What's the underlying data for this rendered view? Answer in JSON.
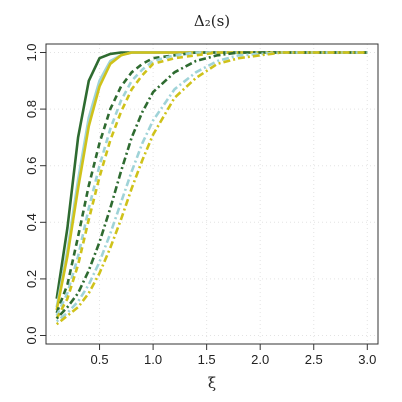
{
  "chart_data": {
    "type": "line",
    "title": "Δ₂(s)",
    "xlabel": "ξ",
    "ylabel": "",
    "xlim": [
      0.0,
      3.1
    ],
    "ylim": [
      -0.03,
      1.03
    ],
    "xticks": [
      "0.5",
      "1.0",
      "1.5",
      "2.0",
      "2.5",
      "3.0"
    ],
    "yticks": [
      "0.0",
      "0.2",
      "0.4",
      "0.6",
      "0.8",
      "1.0"
    ],
    "grid": true,
    "x": [
      0.1,
      0.2,
      0.3,
      0.4,
      0.5,
      0.6,
      0.7,
      0.8,
      0.9,
      1.0,
      1.2,
      1.4,
      1.6,
      1.8,
      2.0,
      2.2,
      2.4,
      2.6,
      2.8,
      3.0
    ],
    "series": [
      {
        "style": "solid",
        "color": "#2e6b30",
        "values": [
          0.13,
          0.38,
          0.7,
          0.9,
          0.98,
          0.995,
          1.0,
          1.0,
          1.0,
          1.0,
          1.0,
          1.0,
          1.0,
          1.0,
          1.0,
          1.0,
          1.0,
          1.0,
          1.0,
          1.0
        ]
      },
      {
        "style": "solid",
        "color": "#9fd3d8",
        "values": [
          0.1,
          0.3,
          0.55,
          0.77,
          0.9,
          0.97,
          0.99,
          1.0,
          1.0,
          1.0,
          1.0,
          1.0,
          1.0,
          1.0,
          1.0,
          1.0,
          1.0,
          1.0,
          1.0,
          1.0
        ]
      },
      {
        "style": "solid",
        "color": "#cfc21a",
        "values": [
          0.09,
          0.28,
          0.52,
          0.74,
          0.88,
          0.96,
          0.99,
          1.0,
          1.0,
          1.0,
          1.0,
          1.0,
          1.0,
          1.0,
          1.0,
          1.0,
          1.0,
          1.0,
          1.0,
          1.0
        ]
      },
      {
        "style": "dashed",
        "color": "#2e6b30",
        "values": [
          0.08,
          0.18,
          0.35,
          0.53,
          0.68,
          0.8,
          0.88,
          0.93,
          0.96,
          0.98,
          0.99,
          1.0,
          1.0,
          1.0,
          1.0,
          1.0,
          1.0,
          1.0,
          1.0,
          1.0
        ]
      },
      {
        "style": "dashed",
        "color": "#9fd3d8",
        "values": [
          0.07,
          0.15,
          0.28,
          0.45,
          0.6,
          0.73,
          0.83,
          0.9,
          0.94,
          0.97,
          0.99,
          1.0,
          1.0,
          1.0,
          1.0,
          1.0,
          1.0,
          1.0,
          1.0,
          1.0
        ]
      },
      {
        "style": "dashed",
        "color": "#cfc21a",
        "values": [
          0.06,
          0.13,
          0.25,
          0.41,
          0.56,
          0.69,
          0.79,
          0.87,
          0.92,
          0.96,
          0.98,
          0.99,
          1.0,
          1.0,
          1.0,
          1.0,
          1.0,
          1.0,
          1.0,
          1.0
        ]
      },
      {
        "style": "dotdash",
        "color": "#2e6b30",
        "values": [
          0.06,
          0.1,
          0.15,
          0.23,
          0.33,
          0.45,
          0.58,
          0.7,
          0.79,
          0.86,
          0.93,
          0.97,
          0.99,
          1.0,
          1.0,
          1.0,
          1.0,
          1.0,
          1.0,
          1.0
        ]
      },
      {
        "style": "dotdash",
        "color": "#9fd3d8",
        "values": [
          0.05,
          0.08,
          0.12,
          0.18,
          0.26,
          0.36,
          0.47,
          0.58,
          0.68,
          0.76,
          0.87,
          0.93,
          0.97,
          0.99,
          0.995,
          1.0,
          1.0,
          1.0,
          1.0,
          1.0
        ]
      },
      {
        "style": "dotdash",
        "color": "#cfc21a",
        "values": [
          0.04,
          0.07,
          0.1,
          0.15,
          0.22,
          0.31,
          0.41,
          0.52,
          0.62,
          0.71,
          0.84,
          0.91,
          0.96,
          0.98,
          0.99,
          1.0,
          1.0,
          1.0,
          1.0,
          1.0
        ]
      }
    ]
  }
}
